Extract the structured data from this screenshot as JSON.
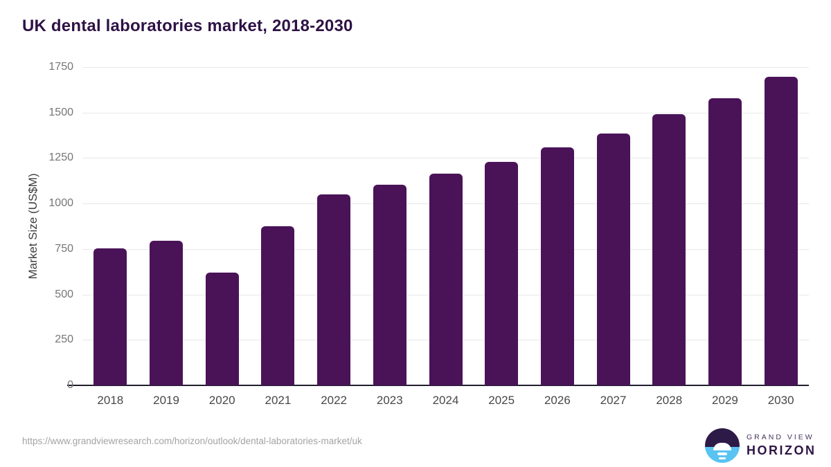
{
  "header": {
    "title": "UK dental laboratories market, 2018-2030"
  },
  "chart_data": {
    "type": "bar",
    "title": "UK dental laboratories market, 2018-2030",
    "categories": [
      "2018",
      "2019",
      "2020",
      "2021",
      "2022",
      "2023",
      "2024",
      "2025",
      "2026",
      "2027",
      "2028",
      "2029",
      "2030"
    ],
    "values": [
      755,
      795,
      620,
      875,
      1050,
      1105,
      1165,
      1230,
      1310,
      1385,
      1490,
      1580,
      1695
    ],
    "xlabel": "",
    "ylabel": "Market Size (US$M)",
    "ylim": [
      0,
      1750
    ],
    "yticks": [
      0,
      250,
      500,
      750,
      1000,
      1250,
      1500,
      1750
    ],
    "grid": "horizontal",
    "legend": "none",
    "bar_color": "#4a1358"
  },
  "footer": {
    "source_url": "https://www.grandviewresearch.com/horizon/outlook/dental-laboratories-market/uk",
    "logo": {
      "line1": "GRAND VIEW",
      "line2": "HORIZON"
    }
  },
  "colors": {
    "bar": "#4a1358",
    "title": "#2e1245",
    "gridline": "#e8e8e8",
    "axis_line": "#1d1d2e",
    "ytick_label": "#757575",
    "xtick_label": "#474747",
    "source_text": "#a3a3a3",
    "logo_dark": "#2e1a47",
    "logo_blue": "#59c3f1"
  }
}
